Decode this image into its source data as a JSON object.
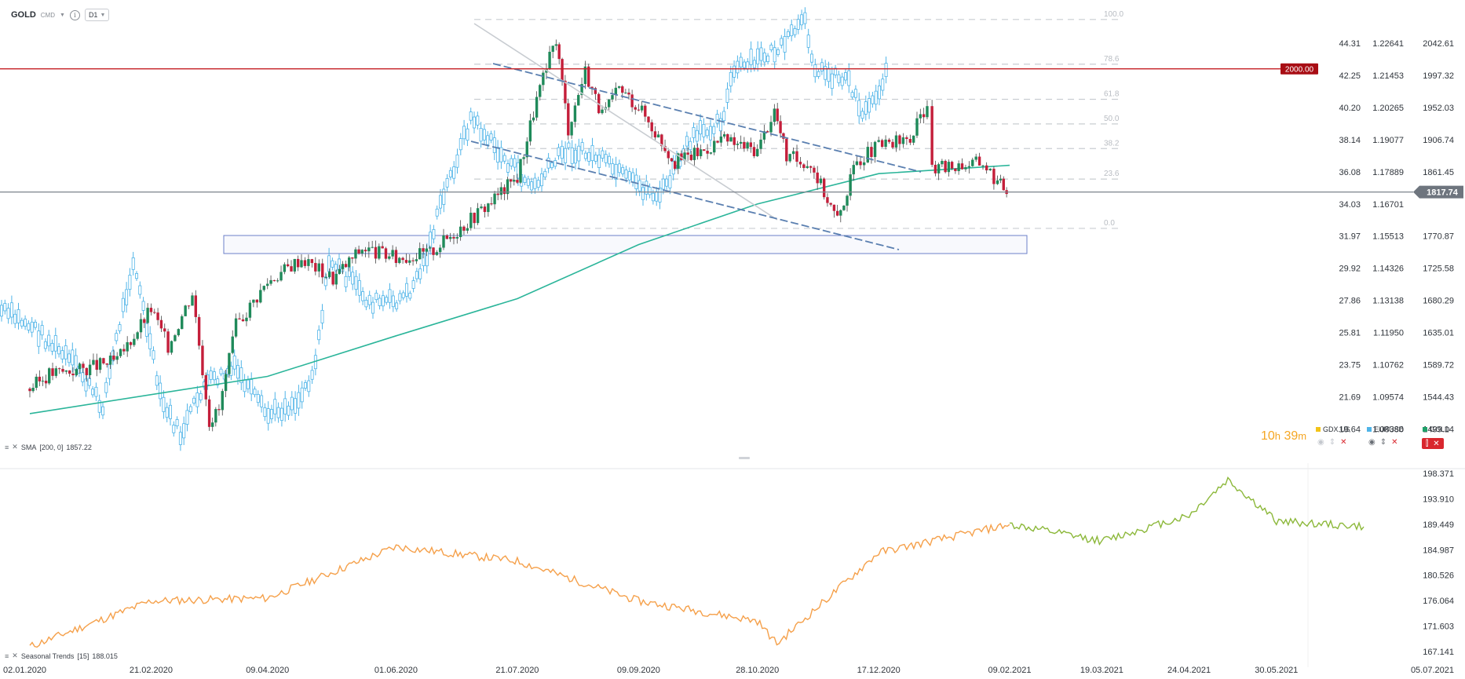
{
  "toolbar": {
    "symbol": "GOLD",
    "exchange": "CMD",
    "info": "i",
    "timeframe": "D1"
  },
  "countdown": {
    "hours": "10",
    "h_unit": "h",
    "minutes": "39",
    "m_unit": "m"
  },
  "legend": [
    {
      "name": "GDX.US",
      "color": "#f2c318"
    },
    {
      "name": "EURUSD",
      "color": "#4fb4e8"
    },
    {
      "name": "GOLD",
      "color": "#1fa16a"
    }
  ],
  "indicators": {
    "sma": {
      "label": "SMA",
      "params": "[200,  0]",
      "value": "1857.22"
    },
    "seasonal": {
      "label": "Seasonal  Trends",
      "params": "[15]",
      "value": "188.015"
    }
  },
  "chart_data": [
    {
      "type": "line",
      "name": "main-price-panel",
      "scale_gdx": {
        "labels": [
          "44.31",
          "42.25",
          "40.20",
          "38.14",
          "36.08",
          "34.03",
          "31.97",
          "29.92",
          "27.86",
          "25.81",
          "23.75",
          "21.69",
          "19.64"
        ],
        "min": 19.64,
        "max": 44.31
      },
      "scale_eurusd": {
        "labels": [
          "1.22641",
          "1.21453",
          "1.20265",
          "1.19077",
          "1.17889",
          "1.16701",
          "1.15513",
          "1.14326",
          "1.13138",
          "1.11950",
          "1.10762",
          "1.09574",
          "1.08386"
        ]
      },
      "scale_gold": {
        "labels": [
          "2042.61",
          "1997.32",
          "1952.03",
          "1906.74",
          "1861.45",
          "1817.74",
          "1770.87",
          "1725.58",
          "1680.29",
          "1635.01",
          "1589.72",
          "1544.43",
          "1499.14"
        ],
        "min": 1499.14,
        "max": 2042.61
      },
      "horizontal_line": {
        "value": 2000.0,
        "label": "2000.00",
        "color": "#c41e24"
      },
      "current_price": {
        "value": 1817.74,
        "label": "1817.74"
      },
      "fibonacci_levels": [
        "100.0",
        "78.6",
        "61.8",
        "50.0",
        "38.2",
        "23.6",
        "0.0"
      ],
      "gold_series": [
        {
          "x": "02.01.2020",
          "y": 1527
        },
        {
          "x": "10.01.2020",
          "y": 1549
        },
        {
          "x": "24.01.2020",
          "y": 1556
        },
        {
          "x": "07.02.2020",
          "y": 1568
        },
        {
          "x": "21.02.2020",
          "y": 1645
        },
        {
          "x": "28.02.2020",
          "y": 1590
        },
        {
          "x": "09.03.2020",
          "y": 1670
        },
        {
          "x": "16.03.2020",
          "y": 1480
        },
        {
          "x": "20.03.2020",
          "y": 1495
        },
        {
          "x": "27.03.2020",
          "y": 1620
        },
        {
          "x": "09.04.2020",
          "y": 1685
        },
        {
          "x": "23.04.2020",
          "y": 1720
        },
        {
          "x": "06.05.2020",
          "y": 1690
        },
        {
          "x": "18.05.2020",
          "y": 1735
        },
        {
          "x": "01.06.2020",
          "y": 1720
        },
        {
          "x": "15.06.2020",
          "y": 1728
        },
        {
          "x": "29.06.2020",
          "y": 1770
        },
        {
          "x": "09.07.2020",
          "y": 1800
        },
        {
          "x": "21.07.2020",
          "y": 1840
        },
        {
          "x": "29.07.2020",
          "y": 1955
        },
        {
          "x": "06.08.2020",
          "y": 2045
        },
        {
          "x": "11.08.2020",
          "y": 1912
        },
        {
          "x": "18.08.2020",
          "y": 1998
        },
        {
          "x": "25.08.2020",
          "y": 1930
        },
        {
          "x": "01.09.2020",
          "y": 1970
        },
        {
          "x": "09.09.2020",
          "y": 1945
        },
        {
          "x": "24.09.2020",
          "y": 1862
        },
        {
          "x": "06.10.2020",
          "y": 1880
        },
        {
          "x": "13.10.2020",
          "y": 1895
        },
        {
          "x": "28.10.2020",
          "y": 1880
        },
        {
          "x": "04.11.2020",
          "y": 1940
        },
        {
          "x": "09.11.2020",
          "y": 1870
        },
        {
          "x": "19.11.2020",
          "y": 1860
        },
        {
          "x": "30.11.2020",
          "y": 1776
        },
        {
          "x": "08.12.2020",
          "y": 1865
        },
        {
          "x": "17.12.2020",
          "y": 1885
        },
        {
          "x": "30.12.2020",
          "y": 1895
        },
        {
          "x": "06.01.2021",
          "y": 1950
        },
        {
          "x": "08.01.2021",
          "y": 1850
        },
        {
          "x": "19.01.2021",
          "y": 1858
        },
        {
          "x": "29.01.2021",
          "y": 1862
        },
        {
          "x": "04.02.2021",
          "y": 1832
        },
        {
          "x": "09.02.2021",
          "y": 1817.74
        }
      ],
      "sma200_series": [
        {
          "x": "02.01.2020",
          "y": 1490
        },
        {
          "x": "09.04.2020",
          "y": 1545
        },
        {
          "x": "01.06.2020",
          "y": 1605
        },
        {
          "x": "21.07.2020",
          "y": 1660
        },
        {
          "x": "09.09.2020",
          "y": 1740
        },
        {
          "x": "28.10.2020",
          "y": 1800
        },
        {
          "x": "17.12.2020",
          "y": 1845
        },
        {
          "x": "09.02.2021",
          "y": 1857.22
        }
      ]
    },
    {
      "type": "line",
      "name": "seasonal-trends-panel",
      "y_labels": [
        "198.371",
        "193.910",
        "189.449",
        "184.987",
        "180.526",
        "176.064",
        "171.603",
        "167.141"
      ],
      "ylim": [
        167.141,
        198.371
      ],
      "x_labels": [
        "02.01.2020",
        "21.02.2020",
        "09.04.2020",
        "01.06.2020",
        "21.07.2020",
        "09.09.2020",
        "28.10.2020",
        "17.12.2020",
        "09.02.2021",
        "19.03.2021",
        "24.04.2021",
        "30.05.2021",
        "05.07.2021"
      ],
      "series": [
        {
          "color": "#f5a04a",
          "values": [
            {
              "x": "02.01.2020",
              "y": 168.0
            },
            {
              "x": "21.02.2020",
              "y": 176.0
            },
            {
              "x": "09.04.2020",
              "y": 176.5
            },
            {
              "x": "01.06.2020",
              "y": 185.5
            },
            {
              "x": "21.07.2020",
              "y": 183.0
            },
            {
              "x": "09.09.2020",
              "y": 176.0
            },
            {
              "x": "28.10.2020",
              "y": 172.5
            },
            {
              "x": "05.11.2020",
              "y": 168.5
            },
            {
              "x": "17.12.2020",
              "y": 184.5
            },
            {
              "x": "09.02.2021",
              "y": 189.4
            }
          ]
        },
        {
          "color": "#8cb83a",
          "values": [
            {
              "x": "09.02.2021",
              "y": 189.4
            },
            {
              "x": "19.03.2021",
              "y": 186.5
            },
            {
              "x": "24.04.2021",
              "y": 191.0
            },
            {
              "x": "10.05.2021",
              "y": 197.2
            },
            {
              "x": "30.05.2021",
              "y": 190.0
            },
            {
              "x": "05.07.2021",
              "y": 189.0
            }
          ]
        }
      ]
    }
  ]
}
